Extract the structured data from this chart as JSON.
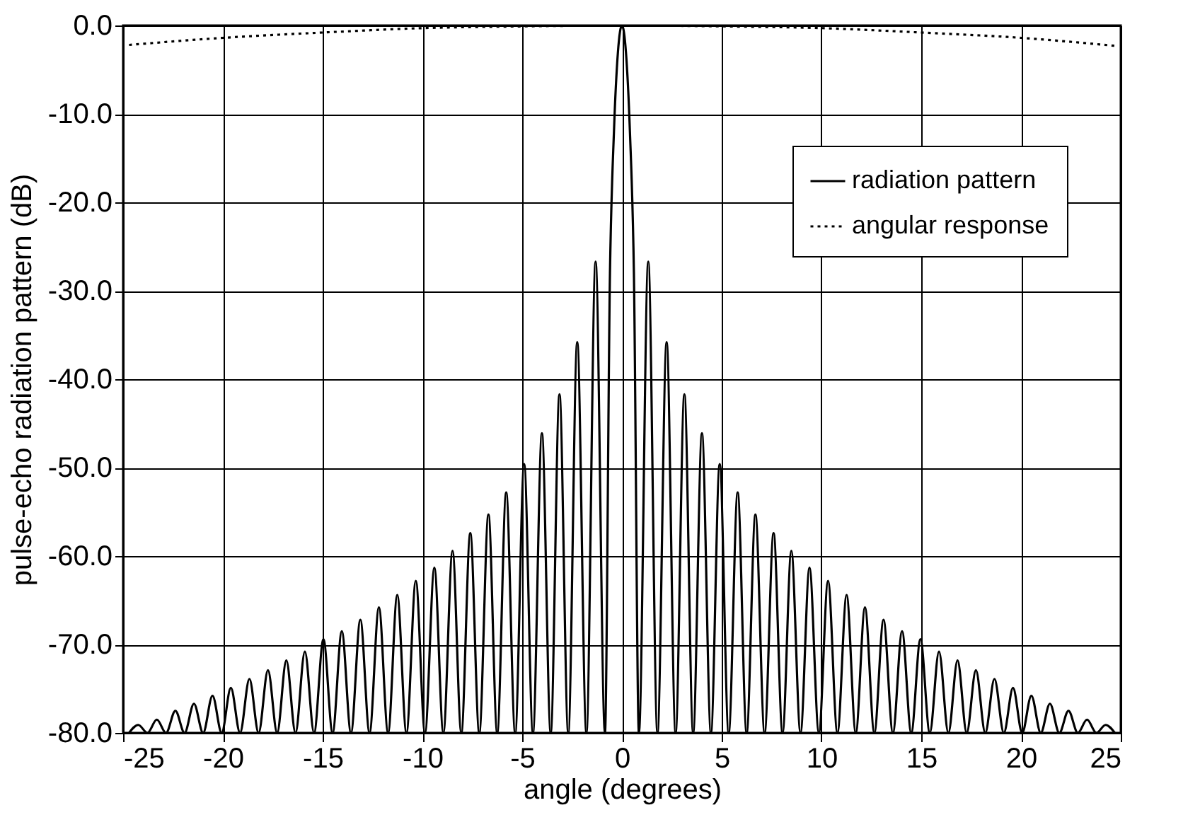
{
  "chart_data": {
    "type": "line",
    "xlabel": "angle (degrees)",
    "ylabel": "pulse-echo radiation pattern (dB)",
    "xlim": [
      -25,
      25
    ],
    "xticks": [
      -25,
      -20,
      -15,
      -10,
      -5,
      0,
      5,
      10,
      15,
      20,
      25
    ],
    "ylim": [
      -80,
      0
    ],
    "yticks": [
      {
        "value": -80,
        "label": "-80.0"
      },
      {
        "value": -70,
        "label": "-70.0"
      },
      {
        "value": -60,
        "label": "-60.0"
      },
      {
        "value": -50,
        "label": "-50.0"
      },
      {
        "value": -40,
        "label": "-40.0"
      },
      {
        "value": -30,
        "label": "-30.0"
      },
      {
        "value": -20,
        "label": "-20.0"
      },
      {
        "value": -10,
        "label": "-10.0"
      },
      {
        "value": 0,
        "label": "0.0"
      }
    ],
    "grid": true,
    "legend": "top right",
    "marker": "none",
    "series": [
      {
        "name": "radiation pattern",
        "color": "#000000",
        "line_style": "solid",
        "x": [
          -24.7,
          -24.24,
          -23.78,
          -23.31,
          -22.85,
          -22.38,
          -21.92,
          -21.45,
          -20.99,
          -20.52,
          -20.06,
          -19.6,
          -19.14,
          -18.67,
          -18.21,
          -17.74,
          -17.28,
          -16.82,
          -16.36,
          -15.89,
          -15.43,
          -14.96,
          -14.5,
          -14.04,
          -13.58,
          -13.11,
          -12.65,
          -12.18,
          -11.72,
          -11.26,
          -10.8,
          -10.33,
          -9.87,
          -9.4,
          -8.95,
          -8.49,
          -8.05,
          -7.6,
          -7.15,
          -6.69,
          -6.25,
          -5.8,
          -5.35,
          -4.9,
          -4.46,
          -4.01,
          -3.57,
          -3.13,
          -2.69,
          -2.24,
          -1.78,
          -1.32,
          -0.85,
          -0.6,
          -0.4,
          -0.2,
          0,
          0.2,
          0.4,
          0.6,
          0.85,
          1.32,
          1.78,
          2.24,
          2.69,
          3.13,
          3.57,
          4.01,
          4.46,
          4.9,
          5.35,
          5.8,
          6.25,
          6.69,
          7.15,
          7.6,
          8.05,
          8.49,
          8.95,
          9.4,
          9.87,
          10.33,
          10.8,
          11.26,
          11.72,
          12.18,
          12.65,
          13.11,
          13.58,
          14.04,
          14.5,
          14.96,
          15.43,
          15.89,
          16.36,
          16.82,
          17.28,
          17.74,
          18.21,
          18.67,
          19.14,
          19.6,
          20.06,
          20.52,
          20.99,
          21.45,
          21.92,
          22.38,
          22.85,
          23.31,
          23.78,
          24.24,
          24.7
        ],
        "values": [
          -80,
          -79.1,
          -80,
          -78.5,
          -80,
          -77.5,
          -80,
          -76.7,
          -80,
          -75.8,
          -80,
          -74.9,
          -80,
          -73.9,
          -80,
          -72.9,
          -80,
          -71.8,
          -80,
          -70.8,
          -80,
          -69.4,
          -80,
          -68.5,
          -80,
          -67.2,
          -80,
          -65.8,
          -80,
          -64.4,
          -80,
          -62.8,
          -80,
          -61.3,
          -80,
          -59.4,
          -80,
          -57.4,
          -80,
          -55.3,
          -80,
          -52.8,
          -80,
          -49.6,
          -80,
          -46.1,
          -80,
          -41.7,
          -80,
          -35.8,
          -80,
          -26.7,
          -80,
          -28,
          -12,
          -3,
          0,
          -3,
          -12,
          -28,
          -80,
          -26.7,
          -80,
          -35.8,
          -80,
          -41.7,
          -80,
          -46.1,
          -80,
          -49.6,
          -80,
          -52.8,
          -80,
          -55.3,
          -80,
          -57.4,
          -80,
          -59.4,
          -80,
          -61.3,
          -80,
          -62.8,
          -80,
          -64.4,
          -80,
          -65.8,
          -80,
          -67.2,
          -80,
          -68.5,
          -80,
          -69.4,
          -80,
          -70.8,
          -80,
          -71.8,
          -80,
          -72.9,
          -80,
          -73.9,
          -80,
          -74.9,
          -80,
          -75.8,
          -80,
          -76.7,
          -80,
          -77.5,
          -80,
          -78.5,
          -80,
          -79.1,
          -80
        ]
      },
      {
        "name": "angular response",
        "color": "#000000",
        "line_style": "dotted",
        "x": [
          -24.7,
          -20,
          -15,
          -10,
          -5,
          0,
          5,
          10,
          15,
          20,
          24.7
        ],
        "values": [
          -2.2,
          -1.4,
          -0.8,
          -0.3,
          -0.1,
          0,
          -0.1,
          -0.3,
          -0.8,
          -1.4,
          -2.3
        ]
      }
    ]
  }
}
